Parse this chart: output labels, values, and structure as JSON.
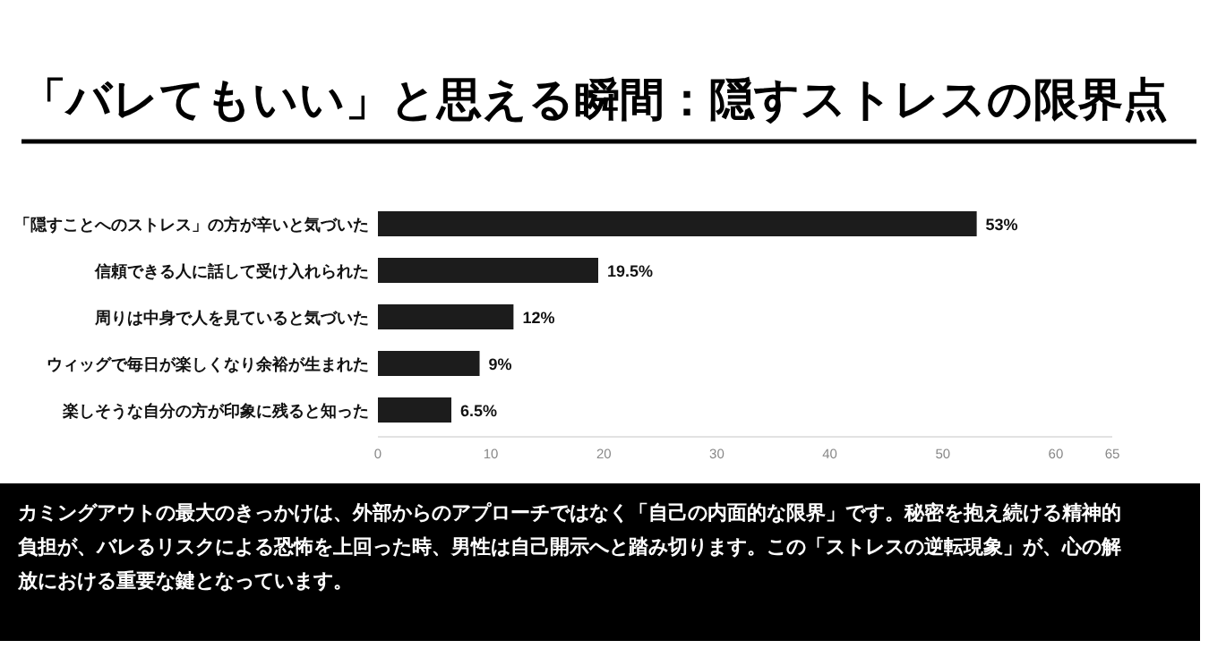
{
  "chart_data": {
    "type": "bar",
    "orientation": "horizontal",
    "title": "「バレてもいい」と思える瞬間：隠すストレスの限界点",
    "categories": [
      "「隠すことへのストレス」の方が辛いと気づいた",
      "信頼できる人に話して受け入れられた",
      "周りは中身で人を見ていると気づいた",
      "ウィッグで毎日が楽しくなり余裕が生まれた",
      "楽しそうな自分の方が印象に残ると知った"
    ],
    "values": [
      53,
      19.5,
      12,
      9,
      6.5
    ],
    "value_labels": [
      "53%",
      "19.5%",
      "12%",
      "9%",
      "6.5%"
    ],
    "color": "#1c1c1c",
    "xlim": [
      0,
      65
    ],
    "xticks": [
      0,
      10,
      20,
      30,
      40,
      50,
      60,
      65
    ],
    "grid": false,
    "annotations": [
      "カミングアウトの最大のきっかけは、外部からのアプローチではなく「自己の内面的な限界」です。秘密を抱え続ける精神的負担が、バレるリスクによる恐怖を上回った時、男性は自己開示へと踏み切ります。この「ストレスの逆転現象」が、心の解放における重要な鍵となっています。"
    ]
  }
}
